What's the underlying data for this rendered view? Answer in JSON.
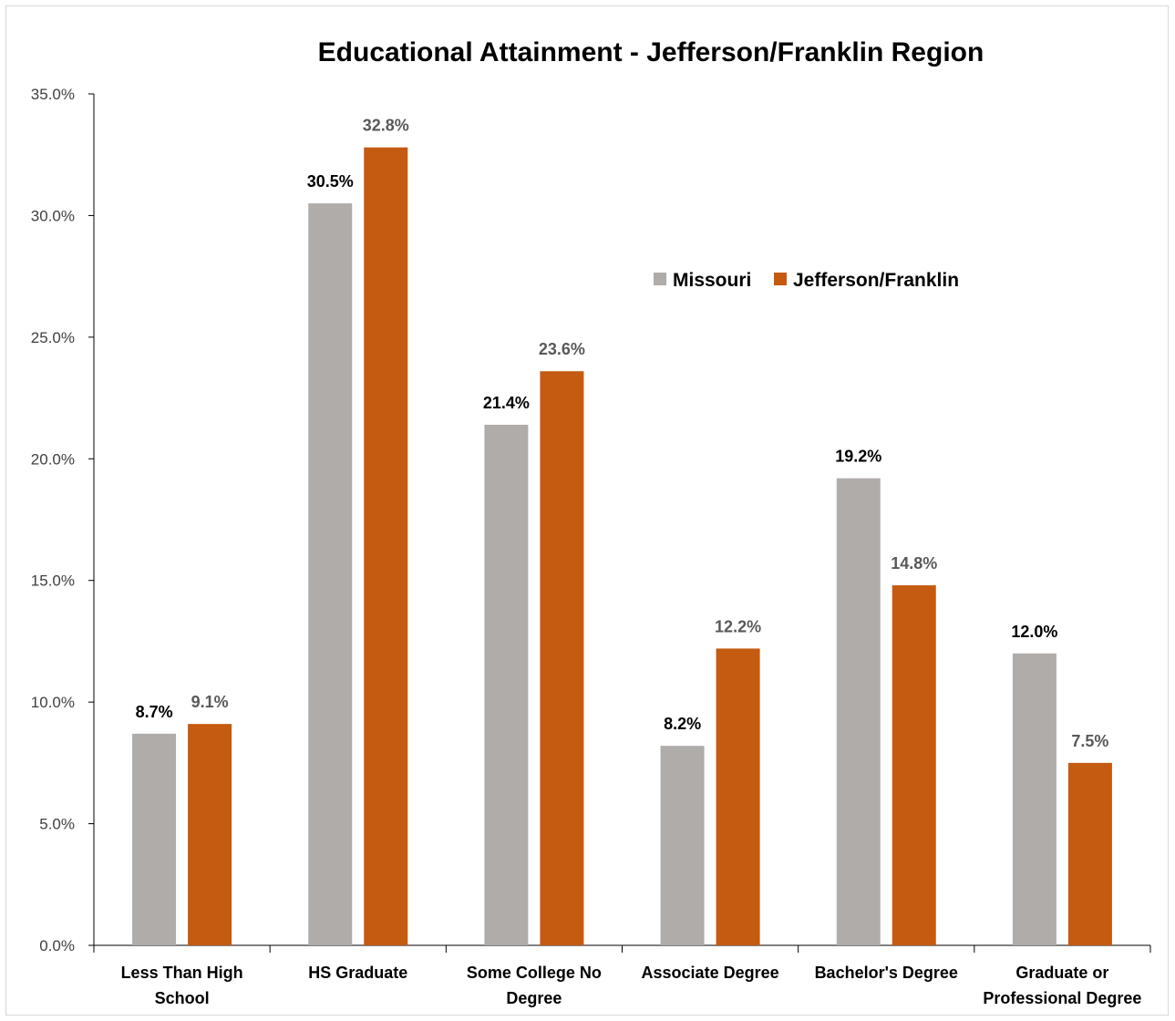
{
  "chart_data": {
    "type": "bar",
    "title": "Educational Attainment - Jefferson/Franklin Region",
    "xlabel": "",
    "ylabel": "",
    "categories": [
      [
        "Less Than High",
        "School"
      ],
      [
        "HS Graduate"
      ],
      [
        "Some College No",
        "Degree"
      ],
      [
        "Associate Degree"
      ],
      [
        "Bachelor's Degree"
      ],
      [
        "Graduate or",
        "Professional Degree"
      ]
    ],
    "series": [
      {
        "name": "Missouri",
        "color": "#b0acaa",
        "label_color": "#000000",
        "values": [
          8.7,
          30.5,
          21.4,
          8.2,
          19.2,
          12.0
        ],
        "labels": [
          "8.7%",
          "30.5%",
          "21.4%",
          "8.2%",
          "19.2%",
          "12.0%"
        ]
      },
      {
        "name": "Jefferson/Franklin",
        "color": "#c55a11",
        "label_color": "#595959",
        "values": [
          9.1,
          32.8,
          23.6,
          12.2,
          14.8,
          7.5
        ],
        "labels": [
          "9.1%",
          "32.8%",
          "23.6%",
          "12.2%",
          "14.8%",
          "7.5%"
        ]
      }
    ],
    "ylim": [
      0,
      35
    ],
    "yticks": [
      0,
      5,
      10,
      15,
      20,
      25,
      30,
      35
    ],
    "ytick_labels": [
      "0.0%",
      "5.0%",
      "10.0%",
      "15.0%",
      "20.0%",
      "25.0%",
      "30.0%",
      "35.0%"
    ],
    "gridlines": false,
    "legend_position": "upper-right inside plot",
    "axis_color": "#000000"
  }
}
